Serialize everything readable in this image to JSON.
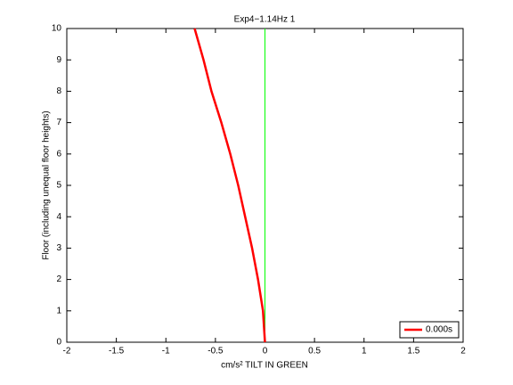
{
  "chart_data": {
    "type": "line",
    "title": "Exp4−1.14Hz 1",
    "x_label": "cm/s² TILT IN GREEN",
    "y_label": "Floor (including unequal floor heights)",
    "xlim": [
      -2,
      2
    ],
    "xticks": [
      -2,
      -1.5,
      -1,
      -0.5,
      0,
      0.5,
      1,
      1.5,
      2
    ],
    "ylim": [
      0,
      10
    ],
    "yticks": [
      0,
      1,
      2,
      3,
      4,
      5,
      6,
      7,
      8,
      9,
      10
    ],
    "legend": "lower right",
    "series": [
      {
        "color": "#00ff00",
        "x": [
          0,
          0
        ],
        "values": [
          0,
          10
        ]
      },
      {
        "name": "0.000s",
        "color": "#ff0000",
        "x": [
          0,
          -0.01,
          -0.02,
          -0.07,
          -0.13,
          -0.2,
          -0.27,
          -0.35,
          -0.44,
          -0.54,
          -0.62,
          -0.71
        ],
        "values": [
          0,
          0.5,
          1,
          2,
          3,
          4,
          5,
          6,
          7,
          8,
          9,
          10
        ]
      }
    ]
  }
}
